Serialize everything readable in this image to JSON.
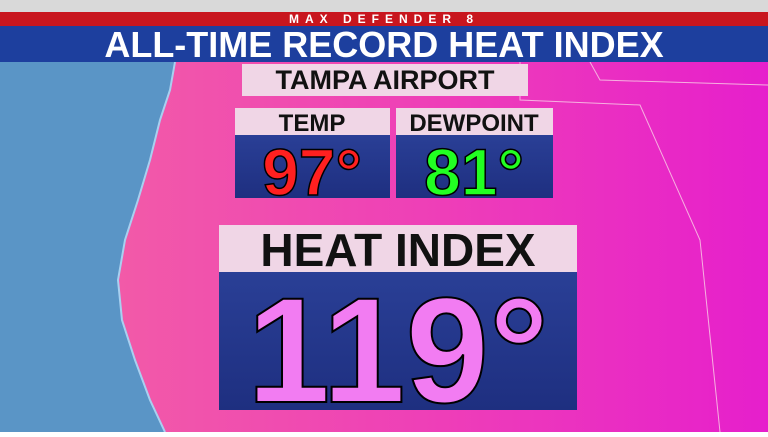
{
  "header": {
    "brand": "MAX DEFENDER 8",
    "title": "ALL-TIME RECORD HEAT INDEX"
  },
  "location": "TAMPA AIRPORT",
  "temp": {
    "label": "TEMP",
    "value": "97°"
  },
  "dewpoint": {
    "label": "DEWPOINT",
    "value": "81°"
  },
  "heat_index": {
    "label": "HEAT INDEX",
    "value": "119°"
  }
}
